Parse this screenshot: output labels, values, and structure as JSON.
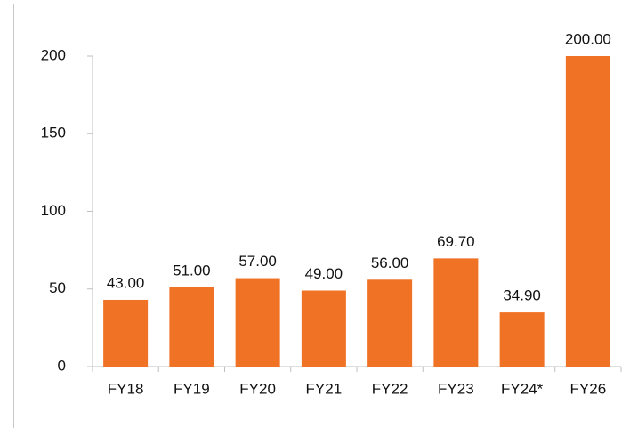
{
  "chart_data": {
    "type": "bar",
    "categories": [
      "FY18",
      "FY19",
      "FY20",
      "FY21",
      "FY22",
      "FY23",
      "FY24*",
      "FY26"
    ],
    "values": [
      43,
      51,
      57,
      49,
      56,
      69.7,
      34.9,
      200
    ],
    "value_labels": [
      "43.00",
      "51.00",
      "57.00",
      "49.00",
      "56.00",
      "69.70",
      "34.90",
      "200.00"
    ],
    "color": "#f07225",
    "ylim": [
      0,
      200
    ],
    "yticks": [
      0,
      50,
      100,
      150,
      200
    ],
    "grid": false
  }
}
